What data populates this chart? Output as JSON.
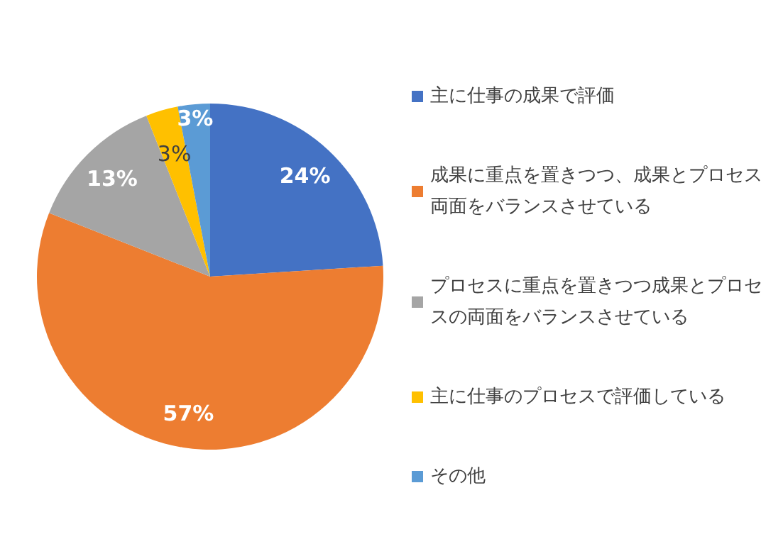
{
  "chart_data": {
    "type": "pie",
    "categories": [
      "主に仕事の成果で評価",
      "成果に重点を置きつつ、成果とプロセス両面をバランスさせている",
      "プロセスに重点を置きつつ成果とプロセスの両面をバランスさせている",
      "主に仕事のプロセスで評価している",
      "その他"
    ],
    "values": [
      24,
      57,
      13,
      3,
      3
    ],
    "colors": [
      "#4472c4",
      "#ed7d31",
      "#a5a5a5",
      "#ffc000",
      "#5b9bd5"
    ],
    "value_labels": [
      "24%",
      "57%",
      "13%",
      "3%",
      "3%"
    ],
    "legend": "right"
  }
}
